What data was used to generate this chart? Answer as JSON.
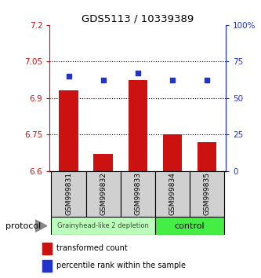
{
  "title": "GDS5113 / 10339389",
  "samples": [
    "GSM999831",
    "GSM999832",
    "GSM999833",
    "GSM999834",
    "GSM999835"
  ],
  "bar_values": [
    6.93,
    6.67,
    6.975,
    6.75,
    6.72
  ],
  "percentile_values": [
    65,
    62,
    67,
    62,
    62
  ],
  "bar_color": "#cc1111",
  "percentile_color": "#2233cc",
  "yleft_min": 6.6,
  "yleft_max": 7.2,
  "yleft_ticks": [
    6.6,
    6.75,
    6.9,
    7.05,
    7.2
  ],
  "yright_min": 0,
  "yright_max": 100,
  "yright_ticks": [
    0,
    25,
    50,
    75,
    100
  ],
  "yright_ticklabels": [
    "0",
    "25",
    "50",
    "75",
    "100%"
  ],
  "group1_label": "Grainyhead-like 2 depletion",
  "group2_label": "control",
  "group1_color": "#bbffbb",
  "group2_color": "#44ee44",
  "protocol_label": "protocol",
  "legend1_label": "transformed count",
  "legend2_label": "percentile rank within the sample",
  "bar_width": 0.55,
  "yleft_color": "#cc1111",
  "yright_color": "#2233cc",
  "sample_bg_color": "#d0d0d0",
  "dotted_ticks": [
    6.75,
    6.9,
    7.05
  ]
}
